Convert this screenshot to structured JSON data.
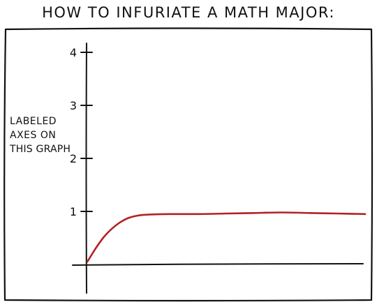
{
  "title": "HOW TO INFURIATE A MATH MAJOR:",
  "colors": {
    "ink": "#111111",
    "curve": "#b22222",
    "background": "#ffffff"
  },
  "chart_data": {
    "type": "line",
    "title": "HOW TO INFURIATE A MATH MAJOR:",
    "xlabel": "",
    "ylabel": "",
    "annotation": [
      "LABELED",
      "AXES ON",
      "THIS GRAPH"
    ],
    "yticks": [
      "1",
      "2",
      "3",
      "4"
    ],
    "ytick_values": [
      1,
      2,
      3,
      4
    ],
    "ylim": [
      0,
      4.4
    ],
    "xlim": [
      0,
      10
    ],
    "grid": false,
    "x_ticks_shown": false,
    "series": [
      {
        "color": "#b22222",
        "x": [
          0,
          0.3,
          0.6,
          0.9,
          1.2,
          1.5,
          1.8,
          2.2,
          3,
          4,
          5,
          6,
          7,
          8,
          9,
          10
        ],
        "y": [
          0.05,
          0.3,
          0.52,
          0.68,
          0.8,
          0.88,
          0.92,
          0.94,
          0.95,
          0.95,
          0.96,
          0.97,
          0.98,
          0.97,
          0.96,
          0.95
        ]
      }
    ]
  }
}
